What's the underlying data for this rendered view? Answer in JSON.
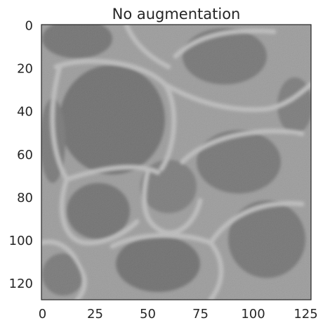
{
  "chart_data": {
    "type": "heatmap",
    "title": "No augmentation",
    "colormap": "gray",
    "image_size": [
      128,
      128
    ],
    "x_ticks": [
      0,
      25,
      50,
      75,
      100,
      125
    ],
    "y_ticks": [
      0,
      20,
      40,
      60,
      80,
      100,
      120
    ],
    "xlim": [
      -0.5,
      127.5
    ],
    "ylim": [
      127.5,
      -0.5
    ],
    "grid": false
  }
}
